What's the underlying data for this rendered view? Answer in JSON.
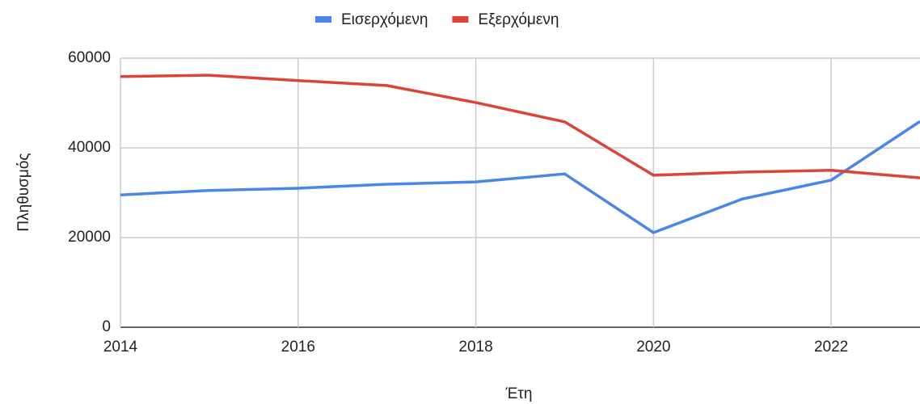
{
  "chart_data": {
    "type": "line",
    "x_label": "Έτη",
    "y_label": "Πληθυσμός",
    "x": [
      2014,
      2015,
      2016,
      2017,
      2018,
      2019,
      2020,
      2021,
      2022,
      2023
    ],
    "series": [
      {
        "name": "Εισερχόμενη",
        "color": "#4a86e8",
        "values": [
          29500,
          30500,
          31000,
          31900,
          32400,
          34200,
          21100,
          28600,
          32800,
          45900
        ]
      },
      {
        "name": "Εξερχόμενη",
        "color": "#db4437",
        "values": [
          55900,
          56200,
          55000,
          53900,
          50100,
          45800,
          33900,
          34600,
          35000,
          33300
        ]
      }
    ],
    "xlim": [
      2014,
      2023
    ],
    "xticks": [
      2014,
      2016,
      2018,
      2020,
      2022
    ],
    "ylim": [
      0,
      60000
    ],
    "yticks": [
      0,
      20000,
      40000,
      60000
    ],
    "grid": true,
    "legend": "top"
  }
}
